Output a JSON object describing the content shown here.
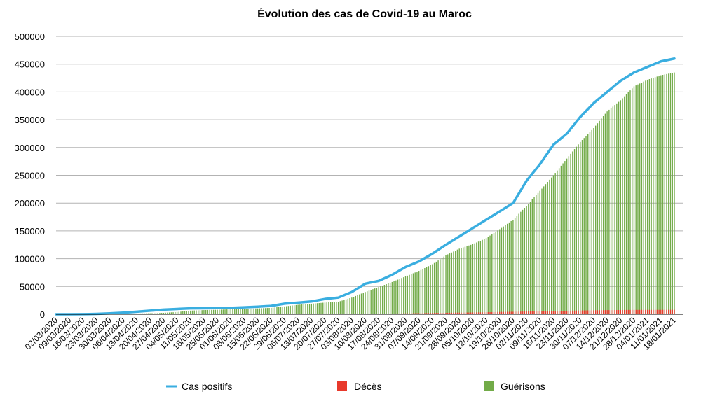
{
  "chart_data": {
    "type": "bar",
    "title": "Évolution des cas de Covid-19 au Maroc",
    "xlabel": "",
    "ylabel": "",
    "ylim": [
      0,
      500000
    ],
    "yticks": [
      "0",
      "50000",
      "100000",
      "150000",
      "200000",
      "250000",
      "300000",
      "350000",
      "400000",
      "450000",
      "500000"
    ],
    "grid": true,
    "legend_position": "bottom",
    "categories": [
      "02/03/2020",
      "09/03/2020",
      "16/03/2020",
      "23/03/2020",
      "30/03/2020",
      "06/04/2020",
      "13/04/2020",
      "20/04/2020",
      "27/04/2020",
      "04/05/2020",
      "11/05/2020",
      "18/05/2020",
      "25/05/2020",
      "01/06/2020",
      "08/06/2020",
      "15/06/2020",
      "22/06/2020",
      "29/06/2020",
      "06/07/2020",
      "13/07/2020",
      "20/07/2020",
      "27/07/2020",
      "03/08/2020",
      "10/08/2020",
      "17/08/2020",
      "24/08/2020",
      "31/08/2020",
      "07/09/2020",
      "14/09/2020",
      "21/09/2020",
      "28/09/2020",
      "05/10/2020",
      "12/10/2020",
      "19/10/2020",
      "26/10/2020",
      "02/11/2020",
      "09/11/2020",
      "16/11/2020",
      "23/11/2020",
      "30/11/2020",
      "07/12/2020",
      "14/12/2020",
      "21/12/2020",
      "28/12/2020",
      "04/01/2021",
      "11/01/2021",
      "18/01/2021"
    ],
    "series": [
      {
        "name": "Cas positifs",
        "type": "line",
        "color": "#3aaee0",
        "values": [
          0,
          5,
          115,
          600,
          1600,
          2800,
          4500,
          6500,
          8300,
          9500,
          10500,
          10700,
          11000,
          11500,
          12500,
          13500,
          15000,
          19000,
          21000,
          23000,
          27500,
          30000,
          40000,
          55000,
          60000,
          71000,
          85000,
          95000,
          109000,
          125000,
          140000,
          155000,
          170000,
          185000,
          200000,
          240000,
          270000,
          305000,
          325000,
          355000,
          380000,
          400000,
          420000,
          435000,
          445000,
          455000,
          460000
        ]
      },
      {
        "name": "Décès",
        "type": "bar",
        "color": "#e8392b",
        "values": [
          0,
          0,
          5,
          40,
          100,
          170,
          190,
          200,
          200,
          200,
          200,
          200,
          210,
          210,
          210,
          215,
          220,
          230,
          240,
          250,
          280,
          330,
          450,
          700,
          900,
          1200,
          1600,
          1900,
          2300,
          2600,
          2900,
          3200,
          3600,
          4100,
          4500,
          5000,
          5500,
          6000,
          6400,
          6800,
          7100,
          7400,
          7600,
          7800,
          7850,
          7900,
          8000
        ]
      },
      {
        "name": "Guérisons",
        "type": "bar",
        "color": "#72ab48",
        "values": [
          0,
          0,
          3,
          40,
          200,
          700,
          1200,
          1800,
          2500,
          4000,
          6500,
          7500,
          8000,
          9000,
          10000,
          10500,
          11500,
          14000,
          17000,
          19000,
          21000,
          22500,
          30000,
          40000,
          49000,
          58000,
          68000,
          78000,
          90000,
          106000,
          118000,
          126000,
          137000,
          153000,
          170000,
          195000,
          222000,
          250000,
          280000,
          310000,
          335000,
          365000,
          385000,
          410000,
          422000,
          430000,
          435000
        ]
      }
    ]
  }
}
